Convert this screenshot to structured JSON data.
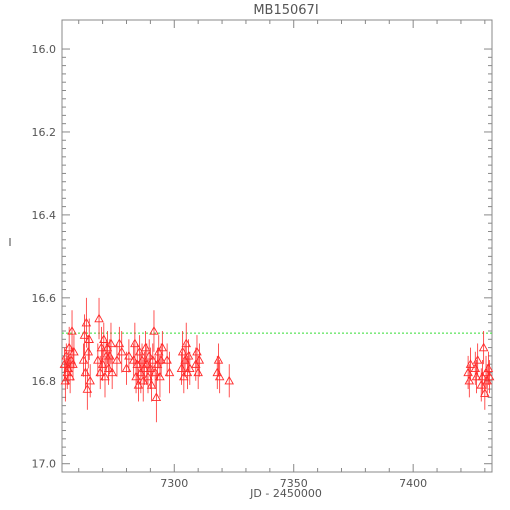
{
  "chart_data": {
    "type": "scatter",
    "title": "MB15067I",
    "xlabel": "JD - 2450000",
    "ylabel": "I",
    "xlim": [
      7253,
      7433
    ],
    "ylim": [
      17.02,
      15.93
    ],
    "y_inverted": true,
    "x_ticks": [
      "7300",
      "7350",
      "7400"
    ],
    "y_ticks": [
      "16.0",
      "16.2",
      "16.4",
      "16.6",
      "16.8",
      "17.0"
    ],
    "reference_line": {
      "y": 16.685,
      "color": "#33dd33",
      "style": "dashed"
    },
    "marker": "open-triangle",
    "marker_color": "#ff2a2a",
    "points": [
      [
        7254.0,
        16.76,
        0.04
      ],
      [
        7254.4,
        16.8,
        0.05
      ],
      [
        7254.8,
        16.74,
        0.03
      ],
      [
        7255.2,
        16.78,
        0.04
      ],
      [
        7255.6,
        16.77,
        0.04
      ],
      [
        7256.0,
        16.72,
        0.05
      ],
      [
        7256.4,
        16.79,
        0.04
      ],
      [
        7256.8,
        16.75,
        0.03
      ],
      [
        7257.2,
        16.68,
        0.05
      ],
      [
        7257.6,
        16.76,
        0.04
      ],
      [
        7258.0,
        16.73,
        0.04
      ],
      [
        7262.0,
        16.75,
        0.04
      ],
      [
        7262.4,
        16.69,
        0.05
      ],
      [
        7262.8,
        16.78,
        0.04
      ],
      [
        7263.2,
        16.66,
        0.06
      ],
      [
        7263.6,
        16.82,
        0.05
      ],
      [
        7264.0,
        16.73,
        0.04
      ],
      [
        7264.4,
        16.7,
        0.05
      ],
      [
        7264.8,
        16.8,
        0.04
      ],
      [
        7268.0,
        16.75,
        0.04
      ],
      [
        7268.5,
        16.65,
        0.05
      ],
      [
        7269.0,
        16.78,
        0.04
      ],
      [
        7269.5,
        16.72,
        0.05
      ],
      [
        7270.0,
        16.76,
        0.04
      ],
      [
        7270.5,
        16.7,
        0.04
      ],
      [
        7271.0,
        16.79,
        0.05
      ],
      [
        7271.5,
        16.74,
        0.04
      ],
      [
        7272.0,
        16.72,
        0.04
      ],
      [
        7272.5,
        16.77,
        0.04
      ],
      [
        7273.0,
        16.74,
        0.04
      ],
      [
        7273.5,
        16.71,
        0.05
      ],
      [
        7274.0,
        16.78,
        0.04
      ],
      [
        7276.0,
        16.75,
        0.04
      ],
      [
        7277.0,
        16.71,
        0.04
      ],
      [
        7278.0,
        16.73,
        0.05
      ],
      [
        7280.0,
        16.77,
        0.04
      ],
      [
        7281.0,
        16.74,
        0.04
      ],
      [
        7283.0,
        16.75,
        0.04
      ],
      [
        7283.5,
        16.71,
        0.05
      ],
      [
        7284.0,
        16.79,
        0.04
      ],
      [
        7284.5,
        16.76,
        0.05
      ],
      [
        7285.0,
        16.81,
        0.04
      ],
      [
        7285.5,
        16.73,
        0.04
      ],
      [
        7286.0,
        16.78,
        0.05
      ],
      [
        7286.5,
        16.75,
        0.04
      ],
      [
        7287.0,
        16.8,
        0.05
      ],
      [
        7287.5,
        16.77,
        0.04
      ],
      [
        7288.0,
        16.72,
        0.04
      ],
      [
        7288.5,
        16.76,
        0.05
      ],
      [
        7289.0,
        16.79,
        0.04
      ],
      [
        7289.5,
        16.74,
        0.04
      ],
      [
        7290.0,
        16.77,
        0.05
      ],
      [
        7290.5,
        16.81,
        0.04
      ],
      [
        7291.0,
        16.75,
        0.04
      ],
      [
        7291.5,
        16.68,
        0.05
      ],
      [
        7292.0,
        16.78,
        0.04
      ],
      [
        7292.5,
        16.84,
        0.06
      ],
      [
        7293.0,
        16.76,
        0.04
      ],
      [
        7293.5,
        16.73,
        0.04
      ],
      [
        7294.0,
        16.79,
        0.05
      ],
      [
        7294.5,
        16.75,
        0.04
      ],
      [
        7295.0,
        16.72,
        0.04
      ],
      [
        7297.0,
        16.75,
        0.04
      ],
      [
        7298.0,
        16.78,
        0.05
      ],
      [
        7303.0,
        16.77,
        0.04
      ],
      [
        7303.5,
        16.73,
        0.05
      ],
      [
        7304.0,
        16.79,
        0.04
      ],
      [
        7304.5,
        16.75,
        0.04
      ],
      [
        7305.0,
        16.71,
        0.05
      ],
      [
        7305.5,
        16.78,
        0.04
      ],
      [
        7306.0,
        16.74,
        0.04
      ],
      [
        7306.5,
        16.77,
        0.04
      ],
      [
        7309.0,
        16.76,
        0.04
      ],
      [
        7309.5,
        16.73,
        0.04
      ],
      [
        7310.0,
        16.78,
        0.04
      ],
      [
        7310.5,
        16.75,
        0.04
      ],
      [
        7318.0,
        16.78,
        0.04
      ],
      [
        7318.5,
        16.75,
        0.04
      ],
      [
        7319.0,
        16.79,
        0.04
      ],
      [
        7323.0,
        16.8,
        0.04
      ],
      [
        7423.0,
        16.78,
        0.04
      ],
      [
        7423.5,
        16.8,
        0.04
      ],
      [
        7424.0,
        16.76,
        0.04
      ],
      [
        7426.0,
        16.77,
        0.04
      ],
      [
        7426.5,
        16.79,
        0.04
      ],
      [
        7427.0,
        16.75,
        0.04
      ],
      [
        7428.5,
        16.81,
        0.04
      ],
      [
        7429.0,
        16.79,
        0.04
      ],
      [
        7429.5,
        16.72,
        0.04
      ],
      [
        7430.0,
        16.83,
        0.04
      ],
      [
        7430.5,
        16.78,
        0.04
      ],
      [
        7431.0,
        16.8,
        0.04
      ],
      [
        7431.5,
        16.77,
        0.04
      ],
      [
        7432.0,
        16.79,
        0.04
      ]
    ]
  }
}
